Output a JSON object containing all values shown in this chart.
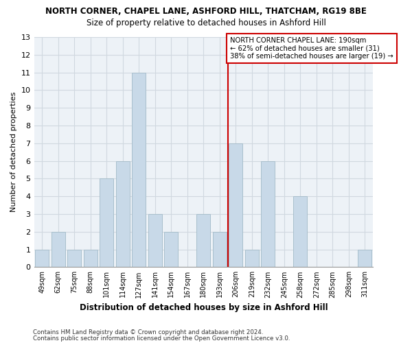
{
  "title1": "NORTH CORNER, CHAPEL LANE, ASHFORD HILL, THATCHAM, RG19 8BE",
  "title2": "Size of property relative to detached houses in Ashford Hill",
  "xlabel": "Distribution of detached houses by size in Ashford Hill",
  "ylabel": "Number of detached properties",
  "categories": [
    "49sqm",
    "62sqm",
    "75sqm",
    "88sqm",
    "101sqm",
    "114sqm",
    "127sqm",
    "141sqm",
    "154sqm",
    "167sqm",
    "180sqm",
    "193sqm",
    "206sqm",
    "219sqm",
    "232sqm",
    "245sqm",
    "258sqm",
    "272sqm",
    "285sqm",
    "298sqm",
    "311sqm"
  ],
  "values": [
    1,
    2,
    1,
    1,
    5,
    6,
    11,
    3,
    2,
    0,
    3,
    2,
    7,
    1,
    6,
    0,
    4,
    0,
    0,
    0,
    1
  ],
  "bar_color": "#c8d9e8",
  "bar_edgecolor": "#a8bfcc",
  "ref_line_color": "#cc0000",
  "annotation_text": "NORTH CORNER CHAPEL LANE: 190sqm\n← 62% of detached houses are smaller (31)\n38% of semi-detached houses are larger (19) →",
  "annotation_box_color": "#cc0000",
  "ylim": [
    0,
    13
  ],
  "yticks": [
    0,
    1,
    2,
    3,
    4,
    5,
    6,
    7,
    8,
    9,
    10,
    11,
    12,
    13
  ],
  "grid_color": "#d0d8e0",
  "bg_color": "#edf2f7",
  "footer1": "Contains HM Land Registry data © Crown copyright and database right 2024.",
  "footer2": "Contains public sector information licensed under the Open Government Licence v3.0."
}
